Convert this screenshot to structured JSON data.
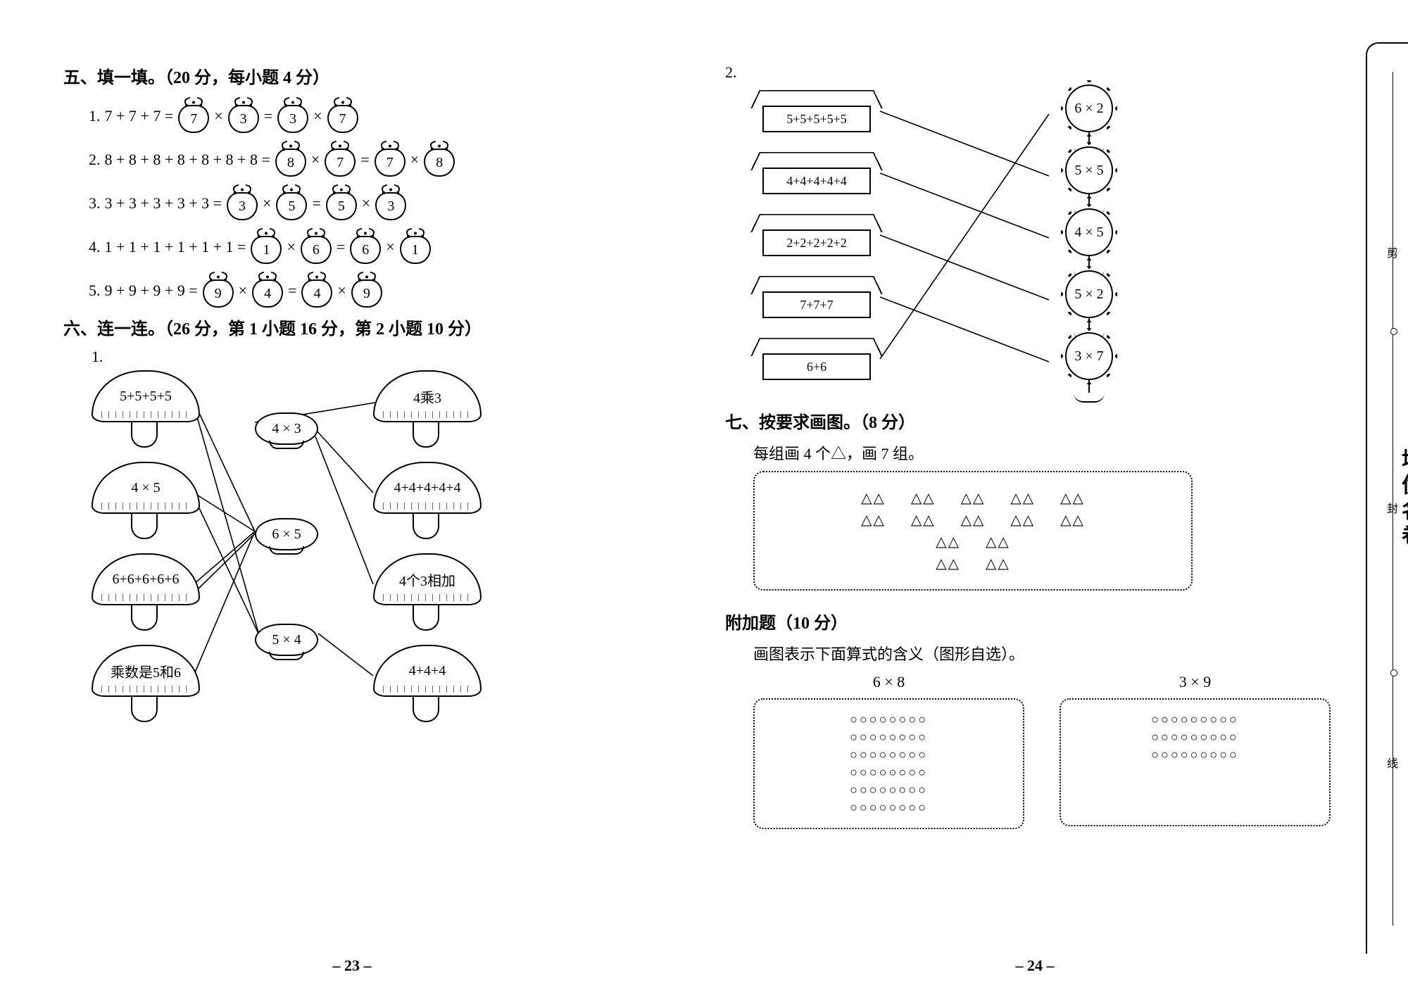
{
  "section5": {
    "title": "五、填一填。（20 分，每小题 4 分）",
    "rows": [
      {
        "idx": "1.",
        "lhs": "7 + 7 + 7 =",
        "a": "7",
        "b": "3",
        "c": "3",
        "d": "7"
      },
      {
        "idx": "2.",
        "lhs": "8 + 8 + 8 + 8 + 8 + 8 + 8 =",
        "a": "8",
        "b": "7",
        "c": "7",
        "d": "8"
      },
      {
        "idx": "3.",
        "lhs": "3 + 3 + 3 + 3 + 3 =",
        "a": "3",
        "b": "5",
        "c": "5",
        "d": "3"
      },
      {
        "idx": "4.",
        "lhs": "1 + 1 + 1 + 1 + 1 + 1 =",
        "a": "1",
        "b": "6",
        "c": "6",
        "d": "1"
      },
      {
        "idx": "5.",
        "lhs": "9 + 9 + 9 + 9 =",
        "a": "9",
        "b": "4",
        "c": "4",
        "d": "9"
      }
    ]
  },
  "section6": {
    "title": "六、连一连。（26 分，第 1 小题 16 分，第 2 小题 10 分）",
    "q1_label": "1.",
    "q1": {
      "left": [
        "5+5+5+5",
        "4 × 5",
        "6+6+6+6+6",
        "乘数是5和6"
      ],
      "center": [
        "4 × 3",
        "6 × 5",
        "5 × 4"
      ],
      "right": [
        "4乘3",
        "4+4+4+4+4",
        "4个3相加",
        "4+4+4"
      ]
    },
    "q2_label": "2.",
    "q2": {
      "houses": [
        "5+5+5+5+5",
        "4+4+4+4+4",
        "2+2+2+2+2",
        "7+7+7",
        "6+6"
      ],
      "flowers": [
        "6 × 2",
        "5 × 5",
        "4 × 5",
        "5 × 2",
        "3 × 7"
      ]
    }
  },
  "section7": {
    "title": "七、按要求画图。（8 分）",
    "sub": "每组画 4 个△，画 7 组。",
    "rows": [
      [
        "△△",
        "△△",
        "△△",
        "△△",
        "△△"
      ],
      [
        "△△",
        "△△",
        "△△",
        "△△",
        "△△"
      ],
      [
        "△△",
        "△△"
      ],
      [
        "△△",
        "△△"
      ]
    ]
  },
  "extra": {
    "title": "附加题（10 分）",
    "sub": "画图表示下面算式的含义（图形自选）。",
    "items": [
      {
        "expr": "6 × 8",
        "rows": [
          "○○○○○○○○",
          "○○○○○○○○",
          "○○○○○○○○",
          "○○○○○○○○",
          "○○○○○○○○",
          "○○○○○○○○"
        ]
      },
      {
        "expr": "3 × 9",
        "rows": [
          "○○○○○○○○○",
          "○○○○○○○○○",
          "○○○○○○○○○"
        ]
      }
    ]
  },
  "pagenum_left": "– 23 –",
  "pagenum_right": "– 24 –",
  "sidebar_text": "培优名卷",
  "sidebar_marks": [
    "剪",
    "封",
    "线"
  ]
}
